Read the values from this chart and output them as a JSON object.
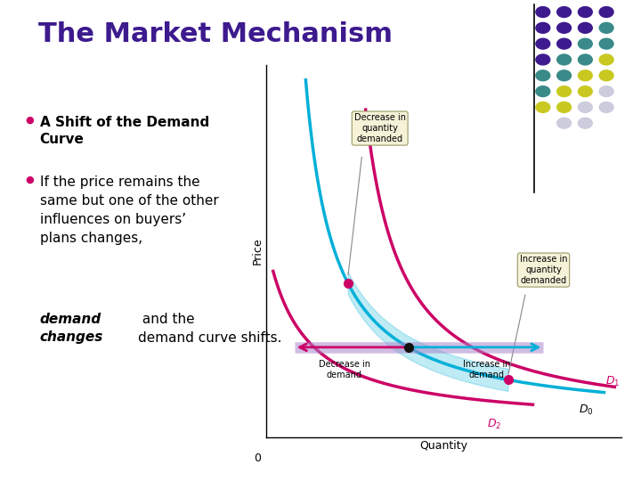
{
  "title": "The Market Mechanism",
  "title_color": "#3d1a8e",
  "title_fontsize": 22,
  "bg_color": "#ffffff",
  "bullet_color": "#cc0066",
  "text_color": "#000000",
  "text_fontsize": 11,
  "curve_D0_color": "#00b0d8",
  "curve_D1_color": "#cc0066",
  "curve_D2_color": "#cc0066",
  "dot_color_top": "#cc0066",
  "dot_color_mid": "#111111",
  "dot_color_bot": "#cc0066",
  "box_facecolor": "#f5f2d8",
  "box_edgecolor": "#999966",
  "ylabel": "Price",
  "xlabel": "Quantity",
  "label_D0": "D0",
  "label_D1": "D1",
  "label_D2": "D2",
  "dot_colors_grid": [
    [
      "#3d1a8e",
      "#3d1a8e",
      "#3d1a8e",
      "#3d1a8e"
    ],
    [
      "#3d1a8e",
      "#3d1a8e",
      "#3d1a8e",
      "#3a8a8a"
    ],
    [
      "#3d1a8e",
      "#3d1a8e",
      "#3a8a8a",
      "#3a8a8a"
    ],
    [
      "#3d1a8e",
      "#3a8a8a",
      "#3a8a8a",
      "#c8c820"
    ],
    [
      "#3a8a8a",
      "#3a8a8a",
      "#c8c820",
      "#c8c820"
    ],
    [
      "#3a8a8a",
      "#c8c820",
      "#c8c820",
      "#ccccdd"
    ],
    [
      "#c8c820",
      "#c8c820",
      "#ccccdd",
      "#ccccdd"
    ],
    [
      "",
      "#ccccdd",
      "#ccccdd",
      ""
    ]
  ]
}
